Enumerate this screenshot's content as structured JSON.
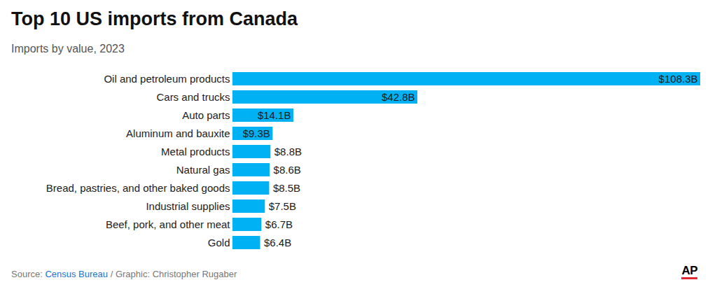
{
  "chart_data": {
    "type": "bar",
    "orientation": "horizontal",
    "title": "Top 10 US imports from Canada",
    "subtitle": "Imports by value, 2023",
    "categories": [
      "Oil and petroleum products",
      "Cars and trucks",
      "Auto parts",
      "Aluminum and bauxite",
      "Metal products",
      "Natural gas",
      "Bread, pastries, and other baked goods",
      "Industrial supplies",
      "Beef, pork, and other meat",
      "Gold"
    ],
    "values": [
      108.3,
      42.8,
      14.1,
      9.3,
      8.8,
      8.6,
      8.5,
      7.5,
      6.7,
      6.4
    ],
    "value_labels": [
      "$108.3B",
      "$42.8B",
      "$14.1B",
      "$9.3B",
      "$8.8B",
      "$8.6B",
      "$8.5B",
      "$7.5B",
      "$6.7B",
      "$6.4B"
    ],
    "color": "#00b2f3",
    "xlim": [
      0,
      108.3
    ],
    "xticks": [],
    "tick_labels": "y",
    "data_labels": true,
    "grid": false,
    "source": "Source: Census Bureau / Graphic: Christopher Rugaber",
    "source_link": "Census Bureau",
    "logo": "AP"
  }
}
